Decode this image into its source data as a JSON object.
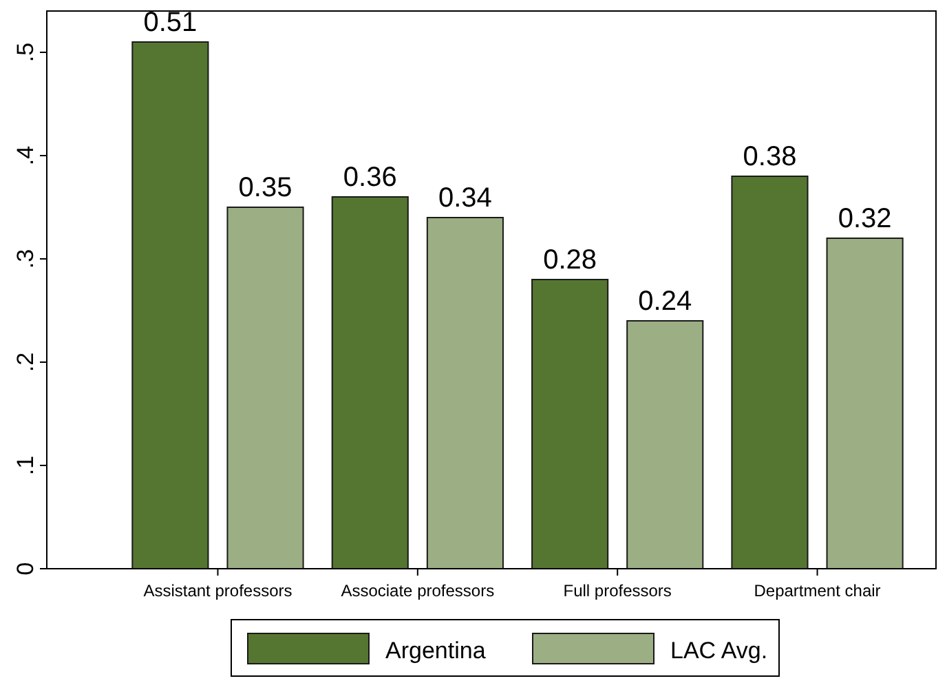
{
  "chart_data": {
    "type": "bar",
    "categories": [
      "Assistant professors",
      "Associate professors",
      "Full professors",
      "Department chair"
    ],
    "series": [
      {
        "name": "Argentina",
        "color": "#557630",
        "values": [
          0.51,
          0.36,
          0.28,
          0.38
        ]
      },
      {
        "name": "LAC Avg.",
        "color": "#9caf84",
        "values": [
          0.35,
          0.34,
          0.24,
          0.32
        ]
      }
    ],
    "ylim": [
      0,
      0.54
    ],
    "yticks": [
      {
        "value": 0,
        "label": "0"
      },
      {
        "value": 0.1,
        "label": ".1"
      },
      {
        "value": 0.2,
        "label": ".2"
      },
      {
        "value": 0.3,
        "label": ".3"
      },
      {
        "value": 0.4,
        "label": ".4"
      },
      {
        "value": 0.5,
        "label": ".5"
      }
    ],
    "data_labels": true,
    "grid": false,
    "legend": "bottom"
  }
}
